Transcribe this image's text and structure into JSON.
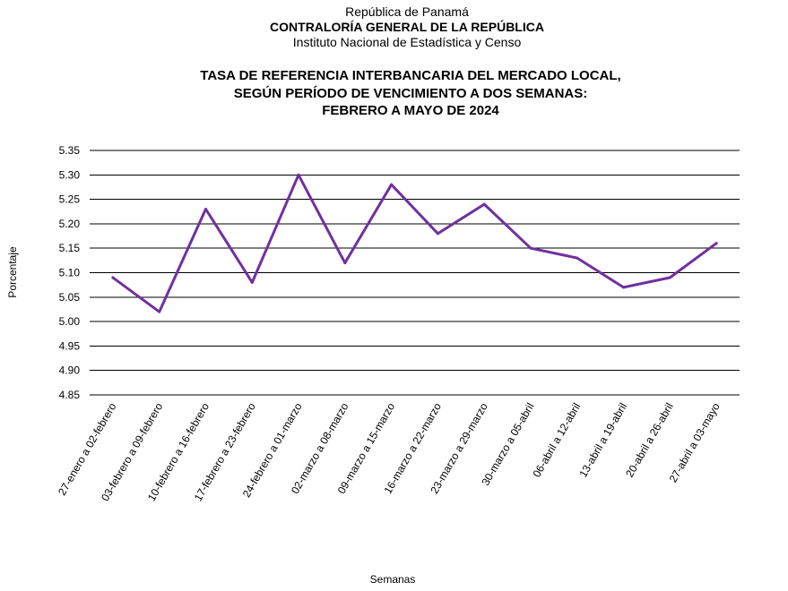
{
  "header": {
    "line1": "República de Panamá",
    "line2": "CONTRALORÍA GENERAL DE LA REPÚBLICA",
    "line3": "Instituto Nacional de Estadística y Censo"
  },
  "chart_data": {
    "type": "line",
    "title": [
      "TASA DE REFERENCIA INTERBANCARIA DEL MERCADO LOCAL,",
      "SEGÚN PERÍODO DE VENCIMIENTO A DOS SEMANAS:",
      "FEBRERO A MAYO DE 2024"
    ],
    "xlabel": "Semanas",
    "ylabel": "Porcentaje",
    "ylim": [
      4.85,
      5.35
    ],
    "yticks": [
      "5.35",
      "5.30",
      "5.25",
      "5.20",
      "5.15",
      "5.10",
      "5.05",
      "5.00",
      "4.95",
      "4.90",
      "4.85"
    ],
    "grid": true,
    "legend": "none",
    "line_color": "#7030a0",
    "categories": [
      "27-enero a 02-febrero",
      "03-febrero a 09-febrero",
      "10-febrero a 16-febrero",
      "17-febrero a 23-febrero",
      "24-febrero a 01-marzo",
      "02-marzo a 08-marzo",
      "09-marzo a 15-marzo",
      "16-marzo a 22-marzo",
      "23-marzo a 29-marzo",
      "30-marzo a 05-abril",
      "06-abril a 12-abril",
      "13-abril a 19-abril",
      "20-abril a 26-abril",
      "27-abril a 03-mayo"
    ],
    "values": [
      5.09,
      5.02,
      5.23,
      5.08,
      5.3,
      5.12,
      5.28,
      5.18,
      5.24,
      5.15,
      5.13,
      5.07,
      5.09,
      5.16
    ]
  }
}
